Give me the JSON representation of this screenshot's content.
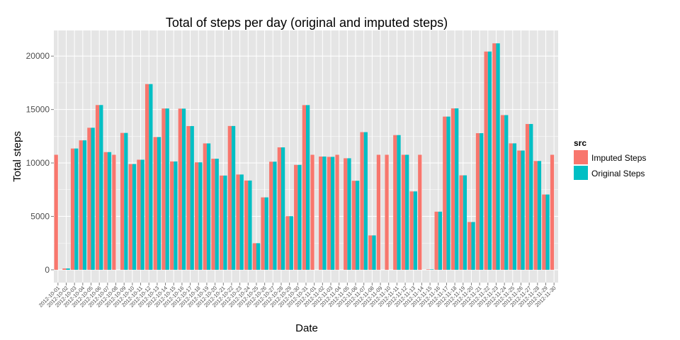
{
  "chart_data": {
    "type": "bar",
    "title": "Total of steps per day (original and imputed steps)",
    "xlabel": "Date",
    "ylabel": "Total steps",
    "ylim": [
      -1200,
      22400
    ],
    "yticks": [
      0,
      5000,
      10000,
      15000,
      20000
    ],
    "grid": true,
    "legend": {
      "title": "src",
      "placement": "right"
    },
    "colors": {
      "Imputed Steps": "#F8766D",
      "Original Steps": "#00BFC4",
      "panel": "#E5E5E5",
      "grid": "#FFFFFF"
    },
    "categories": [
      "2012-10-01",
      "2012-10-02",
      "2012-10-03",
      "2012-10-04",
      "2012-10-05",
      "2012-10-06",
      "2012-10-07",
      "2012-10-08",
      "2012-10-09",
      "2012-10-10",
      "2012-10-11",
      "2012-10-12",
      "2012-10-13",
      "2012-10-14",
      "2012-10-15",
      "2012-10-16",
      "2012-10-17",
      "2012-10-18",
      "2012-10-19",
      "2012-10-20",
      "2012-10-21",
      "2012-10-22",
      "2012-10-23",
      "2012-10-24",
      "2012-10-25",
      "2012-10-26",
      "2012-10-27",
      "2012-10-28",
      "2012-10-29",
      "2012-10-30",
      "2012-10-31",
      "2012-11-01",
      "2012-11-02",
      "2012-11-03",
      "2012-11-04",
      "2012-11-05",
      "2012-11-06",
      "2012-11-07",
      "2012-11-08",
      "2012-11-09",
      "2012-11-10",
      "2012-11-11",
      "2012-11-12",
      "2012-11-13",
      "2012-11-14",
      "2012-11-15",
      "2012-11-16",
      "2012-11-17",
      "2012-11-18",
      "2012-11-19",
      "2012-11-20",
      "2012-11-21",
      "2012-11-22",
      "2012-11-23",
      "2012-11-24",
      "2012-11-25",
      "2012-11-26",
      "2012-11-27",
      "2012-11-28",
      "2012-11-29",
      "2012-11-30"
    ],
    "series": [
      {
        "name": "Imputed Steps",
        "values": [
          10766,
          126,
          11352,
          12116,
          13294,
          15420,
          11015,
          10766,
          12811,
          9900,
          10304,
          17382,
          12426,
          15098,
          10139,
          15084,
          13452,
          10056,
          11829,
          10395,
          8821,
          13460,
          8918,
          8355,
          2492,
          6778,
          10119,
          11458,
          5018,
          9819,
          15414,
          10766,
          10600,
          10571,
          10766,
          10439,
          8334,
          12883,
          3219,
          10766,
          10766,
          12608,
          10765,
          7336,
          10766,
          41,
          5441,
          14339,
          15110,
          8841,
          4472,
          12787,
          20427,
          21194,
          14478,
          11834,
          11162,
          13646,
          10183,
          7047,
          10766
        ]
      },
      {
        "name": "Original Steps",
        "values": [
          null,
          126,
          11352,
          12116,
          13294,
          15420,
          11015,
          null,
          12811,
          9900,
          10304,
          17382,
          12426,
          15098,
          10139,
          15084,
          13452,
          10056,
          11829,
          10395,
          8821,
          13460,
          8918,
          8355,
          2492,
          6778,
          10119,
          11458,
          5018,
          9819,
          15414,
          null,
          10600,
          10571,
          null,
          10439,
          8334,
          12883,
          3219,
          null,
          null,
          12608,
          10765,
          7336,
          null,
          41,
          5441,
          14339,
          15110,
          8841,
          4472,
          12787,
          20427,
          21194,
          14478,
          11834,
          11162,
          13646,
          10183,
          7047,
          null
        ]
      }
    ]
  }
}
